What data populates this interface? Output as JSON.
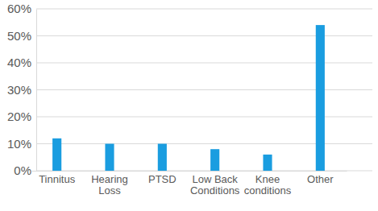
{
  "chart_data": {
    "type": "bar",
    "categories": [
      "Tinnitus",
      "Hearing Loss",
      "PTSD",
      "Low Back Conditions",
      "Knee conditions",
      "Other"
    ],
    "values": [
      12,
      10,
      10,
      8,
      6,
      54
    ],
    "color": "#1a9de0",
    "ylim": [
      0,
      60
    ],
    "yticks": [
      {
        "value": 0,
        "label": "0%"
      },
      {
        "value": 10,
        "label": "10%"
      },
      {
        "value": 20,
        "label": "20%"
      },
      {
        "value": 30,
        "label": "30%"
      },
      {
        "value": 40,
        "label": "40%"
      },
      {
        "value": 50,
        "label": "50%"
      },
      {
        "value": 60,
        "label": "60%"
      }
    ],
    "grid": true
  }
}
